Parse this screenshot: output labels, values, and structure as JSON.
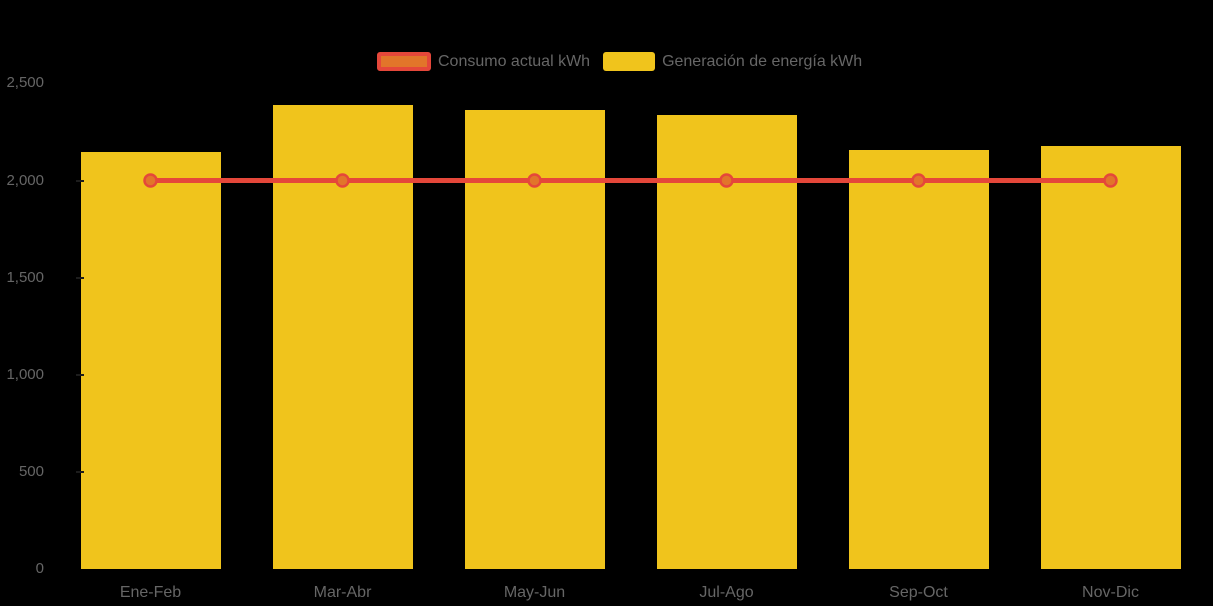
{
  "chart_data": {
    "type": "bar",
    "title": "",
    "categories": [
      "Ene-Feb",
      "Mar-Abr",
      "May-Jun",
      "Jul-Ago",
      "Sep-Oct",
      "Nov-Dic"
    ],
    "series": [
      {
        "name": "Consumo actual kWh",
        "type": "line",
        "values": [
          2000,
          2000,
          2000,
          2000,
          2000,
          2000
        ],
        "line_color": "#E5473A",
        "marker_fill": "#E2752A"
      },
      {
        "name": "Generación de energía kWh",
        "type": "bar",
        "values": [
          2145,
          2390,
          2365,
          2335,
          2155,
          2180
        ],
        "bar_color": "#F0C41C"
      }
    ],
    "xlabel": "",
    "ylabel": "",
    "ylim": [
      0,
      2500
    ],
    "ytick_interval": 500,
    "ytick_labels": [
      "0",
      "500",
      "1,000",
      "1,500",
      "2,000",
      "2,500"
    ],
    "grid": false,
    "legend_position": "top-center",
    "background_color": "#000000",
    "label_color": "#666666"
  }
}
